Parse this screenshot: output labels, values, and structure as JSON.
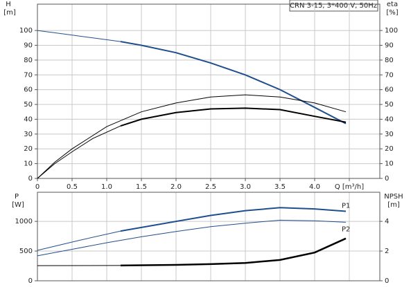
{
  "chart_data": [
    {
      "type": "line",
      "title": "CRN 3-15, 3*400 V, 50Hz",
      "ylabel": "H",
      "yunit": "[m]",
      "y2label": "eta",
      "y2unit": "[%]",
      "xlim": [
        0,
        4.94
      ],
      "xticks": [
        0,
        0.5,
        {
          "value": 1,
          "label": "1.0"
        },
        1.5,
        {
          "value": 2,
          "label": "2.0"
        },
        2.5,
        {
          "value": 3,
          "label": "3.0"
        },
        3.5,
        {
          "value": 4,
          "label": "4.0"
        },
        {
          "value": 4.5,
          "label": "Q [m³/h]"
        }
      ],
      "ylim": [
        0,
        117.8
      ],
      "yticks": [
        0,
        10,
        20,
        30,
        40,
        50,
        60,
        70,
        80,
        90,
        100
      ],
      "y2lim": [
        0,
        117.8
      ],
      "y2ticks": [
        0,
        10,
        20,
        30,
        40,
        50,
        60,
        70,
        80,
        90,
        100
      ],
      "grid": true,
      "series": [
        {
          "color": "#1f4e8c",
          "width": 1,
          "x": [
            0,
            0.4,
            0.8,
            1.2
          ],
          "values": [
            100,
            97.5,
            95,
            92.5
          ]
        },
        {
          "color": "#1f4e8c",
          "width": 2,
          "x": [
            1.2,
            1.5,
            2,
            2.5,
            3,
            3.5,
            4,
            4.45
          ],
          "values": [
            92.5,
            90,
            85,
            78,
            70,
            60,
            48,
            37
          ]
        },
        {
          "color": "#000000",
          "width": 1,
          "axis": "y2",
          "x": [
            0,
            0.25,
            0.5,
            1,
            1.5,
            2,
            2.5,
            3,
            3.5,
            4,
            4.45
          ],
          "values": [
            0,
            11,
            20,
            35,
            45,
            51,
            55,
            56.5,
            55,
            51,
            45
          ]
        },
        {
          "color": "#000000",
          "width": 1,
          "axis": "y2",
          "x": [
            0,
            0.25,
            0.5,
            0.8,
            1.2
          ],
          "values": [
            0,
            10,
            18,
            27,
            35.5
          ]
        },
        {
          "color": "#000000",
          "width": 2,
          "axis": "y2",
          "x": [
            1.2,
            1.5,
            2,
            2.5,
            3,
            3.5,
            4,
            4.45
          ],
          "values": [
            35.5,
            40,
            44.5,
            47,
            47.5,
            46.5,
            42,
            38
          ]
        }
      ]
    },
    {
      "type": "line",
      "ylabel": "P",
      "yunit": "[W]",
      "y2label": "NPSH",
      "y2unit": "[m]",
      "xlim": [
        0,
        4.94
      ],
      "ylim": [
        0,
        1490
      ],
      "yticks": [
        0,
        500,
        1000
      ],
      "y2lim": [
        0,
        5.96
      ],
      "y2ticks": [
        0,
        2,
        4
      ],
      "grid": true,
      "series": [
        {
          "color": "#1f4e8c",
          "width": 1,
          "x": [
            0,
            0.6,
            1.2
          ],
          "values": [
            512,
            680,
            837
          ]
        },
        {
          "name": "P1",
          "color": "#1f4e8c",
          "width": 2,
          "x": [
            1.2,
            2,
            2.5,
            3,
            3.5,
            4,
            4.45
          ],
          "values": [
            837,
            1000,
            1100,
            1180,
            1230,
            1210,
            1170
          ]
        },
        {
          "name": "P2",
          "color": "#1f4e8c",
          "width": 1,
          "x": [
            0,
            0.5,
            1,
            1.5,
            2,
            2.5,
            3,
            3.5,
            4,
            4.45
          ],
          "values": [
            420,
            530,
            640,
            740,
            830,
            910,
            970,
            1020,
            1010,
            985
          ]
        },
        {
          "color": "#000000",
          "width": 1,
          "axis": "y2",
          "x": [
            0,
            1.2
          ],
          "values": [
            1.02,
            1.03
          ]
        },
        {
          "color": "#000000",
          "width": 2.5,
          "axis": "y2",
          "x": [
            1.2,
            2,
            2.5,
            3,
            3.5,
            4,
            4.45
          ],
          "values": [
            1.03,
            1.07,
            1.12,
            1.2,
            1.4,
            1.9,
            2.85
          ]
        }
      ]
    }
  ]
}
